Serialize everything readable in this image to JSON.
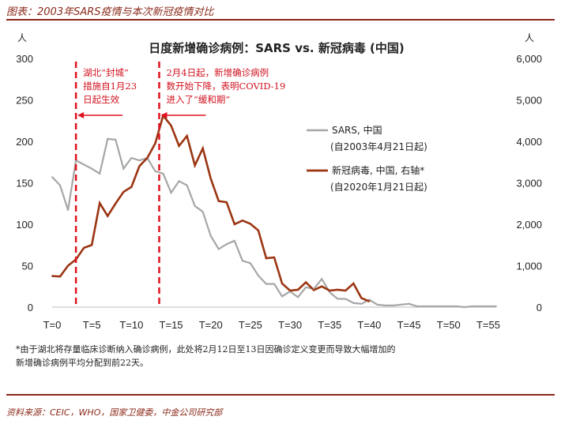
{
  "header": {
    "title": "图表：2003年SARS疫情与本次新冠疫情对比"
  },
  "footer": {
    "source": "资料来源：CEIC，WHO，国家卫健委，中金公司研究部"
  },
  "footnote": {
    "lines": [
      "*由于湖北将存量临床诊断纳入确诊病例，此处将2月12日至13日因确诊定义变更而导致大幅增加的",
      "新增确诊病例平均分配到前22天。"
    ]
  },
  "colors": {
    "sars": "#a6a6a6",
    "covid": "#9b3512",
    "marker": "#e0101e",
    "accent": "#8b2a1a"
  },
  "chart_data": {
    "type": "line",
    "title": "日度新增确诊病例：SARS vs. 新冠病毒 (中国)",
    "left_unit": "人",
    "right_unit": "人",
    "x_ticks": [
      "T=0",
      "T=5",
      "T=10",
      "T=15",
      "T=20",
      "T=25",
      "T=30",
      "T=35",
      "T=40",
      "T=45",
      "T=50",
      "T=55"
    ],
    "xlim": [
      0,
      56
    ],
    "ylim_left": [
      0,
      300
    ],
    "ylim_right": [
      0,
      6000
    ],
    "left_ticks": [
      "0",
      "50",
      "100",
      "150",
      "200",
      "250",
      "300"
    ],
    "right_ticks": [
      "0",
      "1,000",
      "2,000",
      "3,000",
      "4,000",
      "5,000",
      "6,000"
    ],
    "series": [
      {
        "name": "SARS, 中国",
        "legend_line2": "(自2003年4月21日起)",
        "axis": "left",
        "x": [
          0,
          1,
          2,
          3,
          4,
          5,
          6,
          7,
          8,
          9,
          10,
          11,
          12,
          13,
          14,
          15,
          16,
          17,
          18,
          19,
          20,
          21,
          22,
          23,
          24,
          25,
          26,
          27,
          28,
          29,
          30,
          31,
          32,
          33,
          34,
          35,
          36,
          37,
          38,
          39,
          40,
          41,
          42,
          43,
          44,
          45,
          46,
          47,
          48,
          49,
          50,
          51,
          52,
          53,
          54,
          55,
          56
        ],
        "values": [
          157,
          147,
          117,
          177,
          172,
          167,
          161,
          203,
          202,
          167,
          180,
          177,
          180,
          164,
          161,
          138,
          152,
          147,
          122,
          115,
          86,
          70,
          76,
          80,
          56,
          53,
          38,
          28,
          28,
          13,
          19,
          12,
          24,
          22,
          34,
          18,
          10,
          10,
          5,
          4,
          9,
          3,
          2,
          2,
          3,
          4,
          1,
          1,
          1,
          1,
          1,
          1,
          0,
          1,
          1,
          1,
          1
        ]
      },
      {
        "name": "新冠病毒, 中国, 右轴*",
        "legend_line2": "(自2020年1月21日起)",
        "axis": "right",
        "x": [
          0,
          1,
          2,
          3,
          4,
          5,
          6,
          7,
          8,
          9,
          10,
          11,
          12,
          13,
          14,
          15,
          16,
          17,
          18,
          19,
          20,
          21,
          22,
          23,
          24,
          25,
          26,
          27,
          28,
          29,
          30,
          31,
          32,
          33,
          34,
          35,
          36,
          37,
          38,
          39,
          40
        ],
        "values": [
          750,
          740,
          1000,
          1150,
          1430,
          1500,
          2510,
          2200,
          2500,
          2780,
          2900,
          3400,
          3600,
          3950,
          4620,
          4380,
          3890,
          4130,
          3420,
          3830,
          3100,
          2560,
          2530,
          2000,
          2090,
          2010,
          1850,
          1180,
          1200,
          570,
          400,
          420,
          600,
          410,
          500,
          400,
          420,
          400,
          570,
          220,
          140
        ]
      }
    ],
    "annotations": [
      {
        "at_x": 3,
        "lines": [
          "湖北“封城”",
          "措施自1月23",
          "日起生效"
        ]
      },
      {
        "at_x": 13.5,
        "lines": [
          "2月4日起，新增确诊病例",
          "数开始下降，表明COVID-19",
          "进入了“缓和期”"
        ]
      }
    ]
  }
}
